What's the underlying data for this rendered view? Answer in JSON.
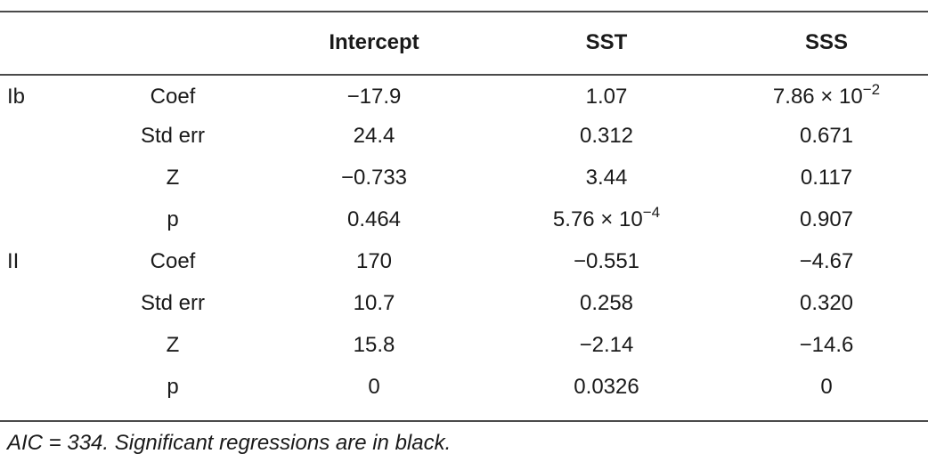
{
  "table": {
    "headers": [
      "",
      "",
      "Intercept",
      "SST",
      "SSS"
    ],
    "rows": [
      {
        "group": "Ib",
        "stat": "Coef",
        "intercept": "−17.9",
        "sst": "1.07",
        "sss_base": "7.86 × 10",
        "sss_exp": "−2"
      },
      {
        "group": "",
        "stat": "Std err",
        "intercept": "24.4",
        "sst": "0.312",
        "sss": "0.671"
      },
      {
        "group": "",
        "stat": "Z",
        "intercept": "−0.733",
        "sst": "3.44",
        "sss": "0.117"
      },
      {
        "group": "",
        "stat": "p",
        "intercept": "0.464",
        "sst_base": "5.76 × 10",
        "sst_exp": "−4",
        "sss": "0.907"
      },
      {
        "group": "II",
        "stat": "Coef",
        "intercept": "170",
        "sst": "−0.551",
        "sss": "−4.67"
      },
      {
        "group": "",
        "stat": "Std err",
        "intercept": "10.7",
        "sst": "0.258",
        "sss": "0.320"
      },
      {
        "group": "",
        "stat": "Z",
        "intercept": "15.8",
        "sst": "−2.14",
        "sss": "−14.6"
      },
      {
        "group": "",
        "stat": "p",
        "intercept": "0",
        "sst": "0.0326",
        "sss": "0"
      }
    ]
  },
  "footnote": "AIC = 334. Significant regressions are in black."
}
